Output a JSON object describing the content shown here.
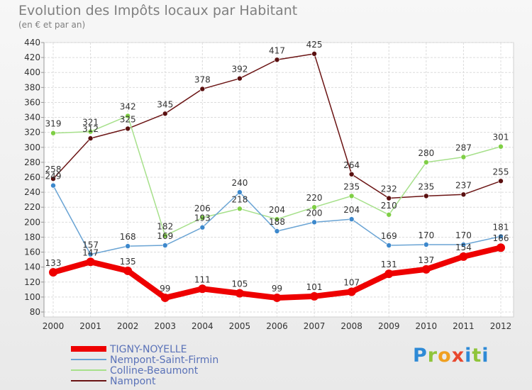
{
  "header": {
    "title": "Evolution des Impôts locaux par Habitant",
    "subtitle": "(en € et par an)"
  },
  "logo": {
    "text": "Proxiti"
  },
  "chart_data": {
    "type": "line",
    "x": [
      "2000",
      "2001",
      "2002",
      "2003",
      "2004",
      "2005",
      "2006",
      "2007",
      "2008",
      "2009",
      "2010",
      "2011",
      "2012"
    ],
    "ylim": [
      80,
      440
    ],
    "yticks": [
      80,
      100,
      120,
      140,
      160,
      180,
      200,
      220,
      240,
      260,
      280,
      300,
      320,
      340,
      360,
      380,
      400,
      420,
      440
    ],
    "grid": true,
    "legend_position": "bottom-left",
    "series": [
      {
        "name": "Nampont",
        "color": "#6b1414",
        "marker": "#5a1010",
        "values": [
          258,
          312,
          325,
          345,
          378,
          392,
          417,
          425,
          264,
          232,
          235,
          237,
          255
        ]
      },
      {
        "name": "Colline-Beaumont",
        "color": "#a6e08a",
        "marker": "#7fcf45",
        "values": [
          319,
          321,
          342,
          182,
          206,
          218,
          204,
          220,
          235,
          210,
          280,
          287,
          301
        ]
      },
      {
        "name": "Nempont-Saint-Firmin",
        "color": "#6aa4d4",
        "marker": "#3d88cc",
        "values": [
          249,
          157,
          168,
          169,
          193,
          240,
          188,
          200,
          204,
          169,
          170,
          170,
          181
        ]
      },
      {
        "name": "TIGNY-NOYELLE",
        "color": "#ee0000",
        "marker": "#ee0000",
        "values": [
          133,
          147,
          135,
          99,
          111,
          105,
          99,
          101,
          107,
          131,
          137,
          154,
          166
        ]
      }
    ],
    "legend_order": [
      "TIGNY-NOYELLE",
      "Nempont-Saint-Firmin",
      "Colline-Beaumont",
      "Nampont"
    ]
  }
}
